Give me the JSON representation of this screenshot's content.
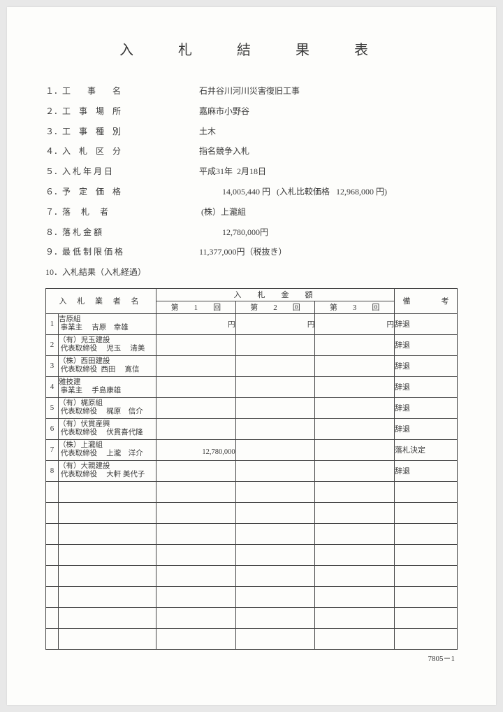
{
  "title": "入　札　結　果　表",
  "info": [
    {
      "label": "１．工　　事　　名",
      "value": "石井谷川河川災害復旧工事"
    },
    {
      "label": "２．工　事　場　所",
      "value": "嘉麻市小野谷"
    },
    {
      "label": "３．工　事　種　別",
      "value": "土木"
    },
    {
      "label": "４．入　札　区　分",
      "value": "指名競争入札"
    },
    {
      "label": "５．入 札 年 月 日",
      "value": "平成31年  2月18日"
    },
    {
      "label": "６．予　定　価　格",
      "value": "           14,005,440 円   (入札比較価格   12,968,000 円)"
    },
    {
      "label": "７．落　 札 　者",
      "value": " (株）上瀧組"
    },
    {
      "label": "８．落 札 金 額",
      "value": "           12,780,000円"
    },
    {
      "label": "９．最 低 制 限 価 格",
      "value": "11,377,000円（税抜き）"
    },
    {
      "label": "10．入札結果（入札経過）",
      "value": ""
    }
  ],
  "table": {
    "headers": {
      "name": "入 札 業 者 名",
      "amount": "入　札　金　額",
      "note": "備　　　　考",
      "rounds": [
        "第　　1　　回",
        "第　　2　　回",
        "第　　3　　回"
      ],
      "yen": "円"
    },
    "rows": [
      {
        "n": "1",
        "name": "吉原組\n 事業主　 吉原　幸雄",
        "a1": "",
        "a2": "",
        "a3": "",
        "note": "辞退"
      },
      {
        "n": "2",
        "name": "（有）児玉建設\n 代表取締役　 児玉 　清美",
        "a1": "",
        "a2": "",
        "a3": "",
        "note": "辞退"
      },
      {
        "n": "3",
        "name": "（株）西田建設\n 代表取締役  西田　 寛信",
        "a1": "",
        "a2": "",
        "a3": "",
        "note": "辞退"
      },
      {
        "n": "4",
        "name": "雅技建\n 事業主　 手島康雄",
        "a1": "",
        "a2": "",
        "a3": "",
        "note": "辞退"
      },
      {
        "n": "5",
        "name": "（有）梶原組\n 代表取締役　 梶原　信介",
        "a1": "",
        "a2": "",
        "a3": "",
        "note": "辞退"
      },
      {
        "n": "6",
        "name": "（有）伏貫産興\n 代表取締役　 伏貫喜代隆",
        "a1": "",
        "a2": "",
        "a3": "",
        "note": "辞退"
      },
      {
        "n": "7",
        "name": "（株）上瀧組\n 代表取締役　 上瀧　洋介",
        "a1": "12,780,000",
        "a2": "",
        "a3": "",
        "note": "落札決定"
      },
      {
        "n": "8",
        "name": "（有）大親建設\n 代表取締役　 大軒 美代子",
        "a1": "",
        "a2": "",
        "a3": "",
        "note": "辞退"
      }
    ],
    "empty_rows": 8
  },
  "footer_code": "7805－1",
  "style": {
    "page_bg": "#fdfdfb",
    "text_color": "#3a3a3a",
    "border_color": "#444444",
    "title_fontsize": 20,
    "body_fontsize": 12,
    "table_fontsize": 11
  }
}
